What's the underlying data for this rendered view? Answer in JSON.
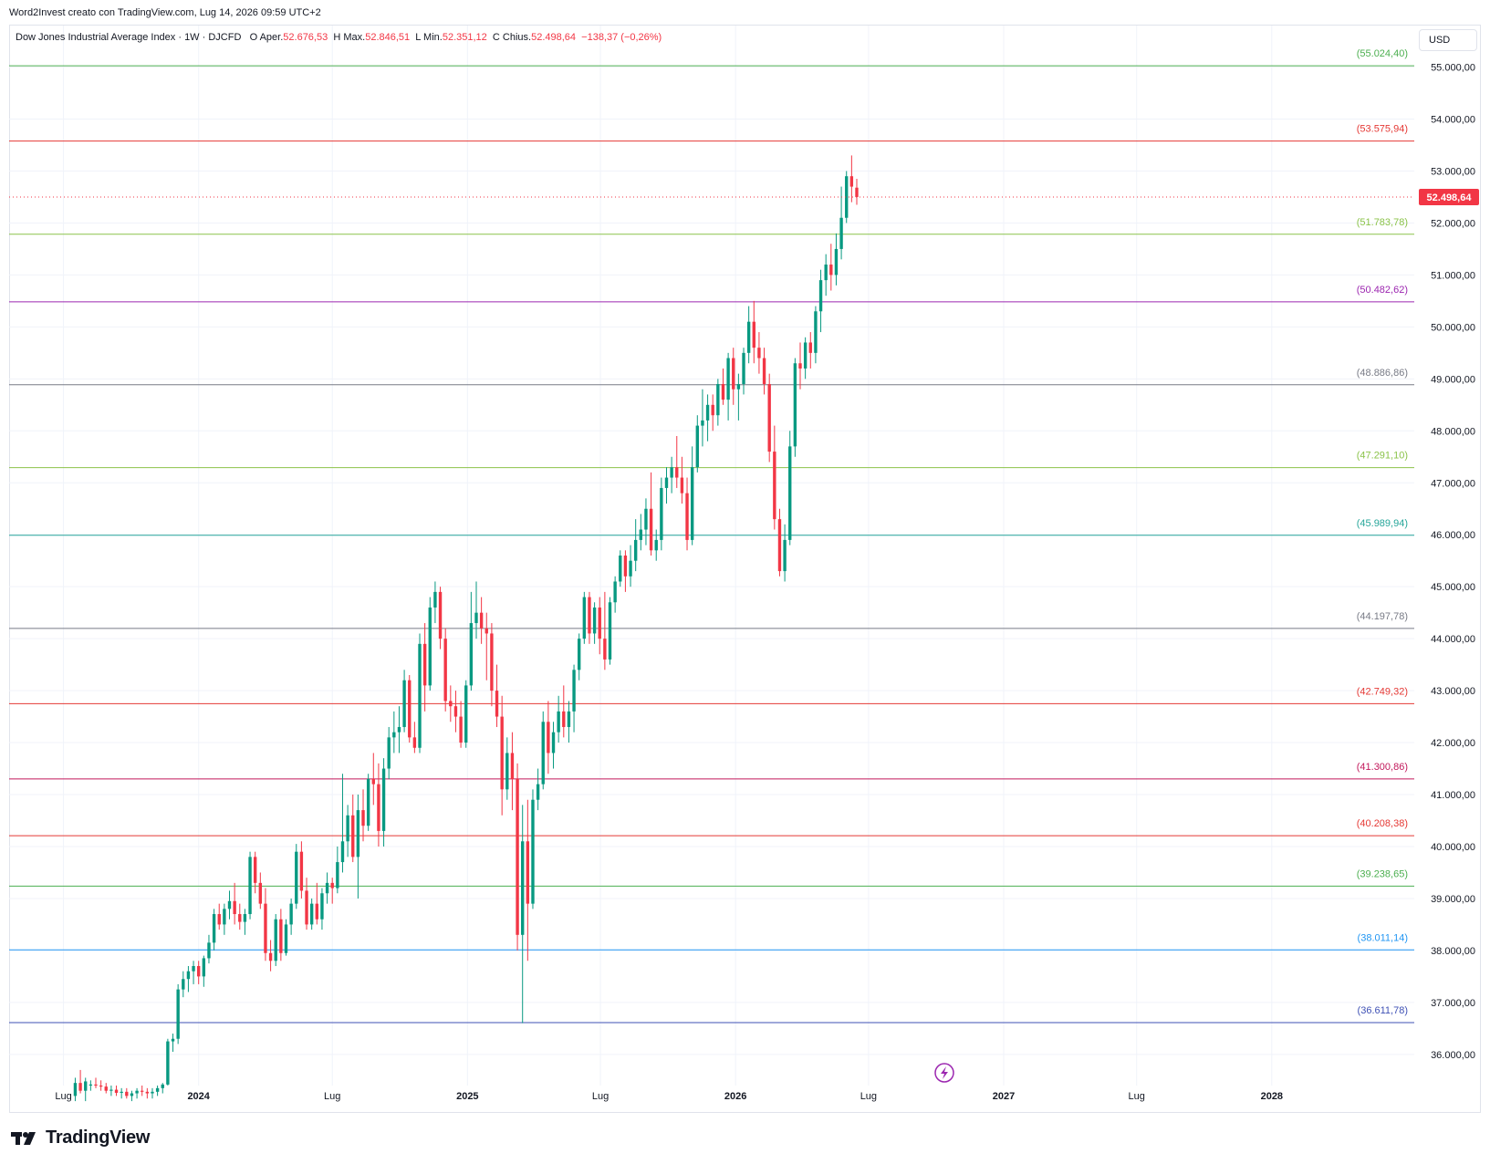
{
  "header": {
    "caption": "Word2Invest creato con TradingView.com, Lug 14, 2026 09:59 UTC+2"
  },
  "legend": {
    "symbol": "Dow Jones Industrial Average Index · 1W · DJCFD",
    "o_label": "O",
    "open_label": "Aper.",
    "open_value": "52.676,53",
    "h_label": "H",
    "high_label": "Max.",
    "high_value": "52.846,51",
    "l_label": "L",
    "low_label": "Min.",
    "low_value": "52.351,12",
    "c_label": "C",
    "close_label": "Chius.",
    "close_value": "52.498,64",
    "change": "−138,37 (−0,26%)"
  },
  "currency": "USD",
  "footer": {
    "brand": "TradingView"
  },
  "colors": {
    "up": "#089981",
    "down": "#f23645",
    "grid": "#f0f3fa",
    "text": "#131722"
  },
  "chart_data": {
    "type": "candlestick",
    "interval": "1W",
    "y_axis": {
      "side": "right",
      "ylim": [
        35400,
        55800
      ],
      "ticks": [
        36000,
        37000,
        38000,
        39000,
        40000,
        41000,
        42000,
        43000,
        44000,
        45000,
        46000,
        47000,
        48000,
        49000,
        50000,
        51000,
        52000,
        53000,
        54000,
        55000
      ],
      "tick_labels": [
        "36.000,00",
        "37.000,00",
        "38.000,00",
        "39.000,00",
        "40.000,00",
        "41.000,00",
        "42.000,00",
        "43.000,00",
        "44.000,00",
        "45.000,00",
        "46.000,00",
        "47.000,00",
        "48.000,00",
        "49.000,00",
        "50.000,00",
        "51.000,00",
        "52.000,00",
        "53.000,00",
        "54.000,00",
        "55.000,00"
      ]
    },
    "x_axis": {
      "start": "2023-04-18",
      "end": "2028-07-13",
      "ticks": [
        {
          "date": "2023-07-01",
          "label": "Lug"
        },
        {
          "date": "2024-01-01",
          "label": "2024"
        },
        {
          "date": "2024-07-01",
          "label": "Lug"
        },
        {
          "date": "2025-01-01",
          "label": "2025"
        },
        {
          "date": "2025-07-01",
          "label": "Lug"
        },
        {
          "date": "2026-01-01",
          "label": "2026"
        },
        {
          "date": "2026-07-01",
          "label": "Lug"
        },
        {
          "date": "2027-01-01",
          "label": "2027"
        },
        {
          "date": "2027-07-01",
          "label": "Lug"
        },
        {
          "date": "2028-01-01",
          "label": "2028"
        }
      ]
    },
    "last_price": {
      "value": 52498.64,
      "label": "52.498,64"
    },
    "levels": [
      {
        "value": 55024.4,
        "label": "(55.024,40)",
        "color": "#4caf50"
      },
      {
        "value": 53575.94,
        "label": "(53.575,94)",
        "color": "#e53935"
      },
      {
        "value": 51783.78,
        "label": "(51.783,78)",
        "color": "#8bc34a"
      },
      {
        "value": 50482.62,
        "label": "(50.482,62)",
        "color": "#9c27b0"
      },
      {
        "value": 48886.86,
        "label": "(48.886,86)",
        "color": "#787b86"
      },
      {
        "value": 47291.1,
        "label": "(47.291,10)",
        "color": "#8bc34a"
      },
      {
        "value": 45989.94,
        "label": "(45.989,94)",
        "color": "#26a69a"
      },
      {
        "value": 44197.78,
        "label": "(44.197,78)",
        "color": "#787b86"
      },
      {
        "value": 42749.32,
        "label": "(42.749,32)",
        "color": "#e53935"
      },
      {
        "value": 41300.86,
        "label": "(41.300,86)",
        "color": "#c2185b"
      },
      {
        "value": 40208.38,
        "label": "(40.208,38)",
        "color": "#e53935"
      },
      {
        "value": 39238.65,
        "label": "(39.238,65)",
        "color": "#4caf50"
      },
      {
        "value": 38011.14,
        "label": "(38.011,14)",
        "color": "#2196f3"
      },
      {
        "value": 36611.78,
        "label": "(36.611,78)",
        "color": "#3f51b5"
      }
    ],
    "candles_note": "weekly OHLC approximated from the image",
    "first_candle_date": "2023-07-17",
    "candles": [
      [
        35200,
        35550,
        35100,
        35450
      ],
      [
        35450,
        35700,
        35250,
        35300
      ],
      [
        35300,
        35550,
        35100,
        35480
      ],
      [
        35400,
        35500,
        35300,
        35420
      ],
      [
        35420,
        35550,
        35350,
        35400
      ],
      [
        35400,
        35500,
        35300,
        35380
      ],
      [
        35380,
        35450,
        35250,
        35300
      ],
      [
        35300,
        35400,
        35200,
        35320
      ],
      [
        35320,
        35400,
        35200,
        35260
      ],
      [
        35260,
        35350,
        35150,
        35280
      ],
      [
        35280,
        35350,
        35150,
        35200
      ],
      [
        35200,
        35300,
        35100,
        35250
      ],
      [
        35250,
        35350,
        35150,
        35300
      ],
      [
        35300,
        35400,
        35200,
        35280
      ],
      [
        35280,
        35350,
        35150,
        35250
      ],
      [
        35250,
        35350,
        35150,
        35280
      ],
      [
        35280,
        35400,
        35200,
        35350
      ],
      [
        35350,
        35450,
        35250,
        35420
      ],
      [
        35420,
        36300,
        35400,
        36250
      ],
      [
        36250,
        36400,
        36050,
        36300
      ],
      [
        36300,
        37350,
        36200,
        37250
      ],
      [
        37250,
        37600,
        37100,
        37450
      ],
      [
        37450,
        37700,
        37200,
        37600
      ],
      [
        37600,
        37800,
        37350,
        37700
      ],
      [
        37700,
        37800,
        37350,
        37500
      ],
      [
        37500,
        37900,
        37300,
        37850
      ],
      [
        37850,
        38300,
        37750,
        38150
      ],
      [
        38150,
        38800,
        38000,
        38700
      ],
      [
        38700,
        38900,
        38400,
        38500
      ],
      [
        38500,
        38900,
        38300,
        38800
      ],
      [
        38800,
        39150,
        38600,
        38950
      ],
      [
        38950,
        39300,
        38500,
        38700
      ],
      [
        38700,
        38900,
        38400,
        38550
      ],
      [
        38550,
        38800,
        38300,
        38700
      ],
      [
        38700,
        39900,
        38600,
        39800
      ],
      [
        39800,
        39900,
        39100,
        39300
      ],
      [
        39300,
        39500,
        38800,
        38900
      ],
      [
        38900,
        39200,
        37800,
        37950
      ],
      [
        37950,
        38200,
        37600,
        37800
      ],
      [
        37800,
        38700,
        37700,
        38600
      ],
      [
        38600,
        38800,
        37800,
        37950
      ],
      [
        37950,
        38600,
        37900,
        38500
      ],
      [
        38500,
        39000,
        38300,
        38900
      ],
      [
        38900,
        40050,
        38800,
        39900
      ],
      [
        39900,
        40100,
        39000,
        39150
      ],
      [
        39150,
        39400,
        38400,
        38500
      ],
      [
        38500,
        39000,
        38400,
        38900
      ],
      [
        38900,
        39300,
        38500,
        38600
      ],
      [
        38600,
        39200,
        38400,
        39100
      ],
      [
        39100,
        39500,
        38900,
        39300
      ],
      [
        39300,
        39400,
        38900,
        39200
      ],
      [
        39200,
        40000,
        39100,
        39700
      ],
      [
        39700,
        41400,
        39500,
        40100
      ],
      [
        40100,
        40800,
        39800,
        40600
      ],
      [
        40600,
        41000,
        39700,
        39800
      ],
      [
        39800,
        41000,
        39000,
        40700
      ],
      [
        40700,
        41100,
        40100,
        40400
      ],
      [
        40400,
        41400,
        40300,
        41300
      ],
      [
        41300,
        41800,
        40800,
        41200
      ],
      [
        41200,
        41600,
        40000,
        40300
      ],
      [
        40300,
        41700,
        40000,
        41500
      ],
      [
        41500,
        42300,
        41300,
        42100
      ],
      [
        42100,
        42600,
        41800,
        42200
      ],
      [
        42200,
        42700,
        41800,
        42300
      ],
      [
        42300,
        43400,
        42200,
        43200
      ],
      [
        43200,
        43300,
        42000,
        42100
      ],
      [
        42100,
        42400,
        41800,
        41900
      ],
      [
        41900,
        44100,
        41800,
        43900
      ],
      [
        43900,
        44300,
        42600,
        43100
      ],
      [
        43100,
        44800,
        43000,
        44600
      ],
      [
        44600,
        45100,
        44300,
        44900
      ],
      [
        44900,
        45000,
        43800,
        44000
      ],
      [
        44000,
        44200,
        42600,
        42800
      ],
      [
        42800,
        43100,
        42400,
        42700
      ],
      [
        42700,
        43000,
        42200,
        42500
      ],
      [
        42500,
        42800,
        41900,
        42000
      ],
      [
        42000,
        43200,
        41900,
        43100
      ],
      [
        43100,
        44900,
        43000,
        44300
      ],
      [
        44300,
        45100,
        44000,
        44500
      ],
      [
        44500,
        44800,
        43900,
        44200
      ],
      [
        44200,
        44500,
        43200,
        44100
      ],
      [
        44100,
        44300,
        42700,
        43000
      ],
      [
        43000,
        43500,
        42300,
        42500
      ],
      [
        42500,
        42900,
        40600,
        41100
      ],
      [
        41100,
        42100,
        40900,
        41800
      ],
      [
        41800,
        42200,
        40700,
        41300
      ],
      [
        41300,
        41600,
        38000,
        38300
      ],
      [
        38300,
        40800,
        36600,
        40100
      ],
      [
        40100,
        40900,
        37800,
        38900
      ],
      [
        38900,
        41100,
        38800,
        40900
      ],
      [
        40900,
        41500,
        40700,
        41200
      ],
      [
        41200,
        42600,
        41100,
        42400
      ],
      [
        42400,
        42800,
        41400,
        41800
      ],
      [
        41800,
        42400,
        41500,
        42200
      ],
      [
        42200,
        42900,
        42000,
        42600
      ],
      [
        42600,
        43100,
        42100,
        42300
      ],
      [
        42300,
        42800,
        42000,
        42600
      ],
      [
        42600,
        43500,
        42200,
        43400
      ],
      [
        43400,
        44100,
        43200,
        44000
      ],
      [
        44000,
        44900,
        43900,
        44800
      ],
      [
        44800,
        44900,
        43900,
        44100
      ],
      [
        44100,
        44700,
        43900,
        44600
      ],
      [
        44600,
        44800,
        43700,
        44000
      ],
      [
        44000,
        44900,
        43400,
        43600
      ],
      [
        43600,
        44800,
        43500,
        44700
      ],
      [
        44700,
        45200,
        44500,
        45100
      ],
      [
        45100,
        45700,
        45000,
        45600
      ],
      [
        45600,
        45700,
        44900,
        45200
      ],
      [
        45200,
        45800,
        45000,
        45500
      ],
      [
        45500,
        46300,
        45300,
        45900
      ],
      [
        45900,
        46400,
        45700,
        46100
      ],
      [
        46100,
        46700,
        45800,
        46500
      ],
      [
        46500,
        47200,
        45600,
        45700
      ],
      [
        45700,
        46100,
        45500,
        45900
      ],
      [
        45900,
        47100,
        45700,
        46900
      ],
      [
        46900,
        47300,
        46600,
        47100
      ],
      [
        47100,
        47500,
        46800,
        47300
      ],
      [
        47300,
        47900,
        46900,
        47100
      ],
      [
        47100,
        47500,
        46600,
        46800
      ],
      [
        46800,
        47100,
        45700,
        45900
      ],
      [
        45900,
        47700,
        45800,
        47300
      ],
      [
        47300,
        48300,
        47200,
        48100
      ],
      [
        48100,
        48800,
        47700,
        48200
      ],
      [
        48200,
        48700,
        47800,
        48500
      ],
      [
        48500,
        48700,
        48000,
        48300
      ],
      [
        48300,
        49000,
        48100,
        48900
      ],
      [
        48900,
        49200,
        48500,
        48600
      ],
      [
        48600,
        49500,
        48200,
        49400
      ],
      [
        49400,
        49600,
        48500,
        48800
      ],
      [
        48800,
        49100,
        48200,
        48900
      ],
      [
        48900,
        49600,
        48700,
        49500
      ],
      [
        49500,
        50400,
        49300,
        50100
      ],
      [
        50100,
        50500,
        49300,
        49600
      ],
      [
        49600,
        49900,
        49100,
        49400
      ],
      [
        49400,
        49600,
        48700,
        48900
      ],
      [
        48900,
        49100,
        47400,
        47600
      ],
      [
        47600,
        48100,
        46100,
        46300
      ],
      [
        46300,
        46500,
        45200,
        45300
      ],
      [
        45300,
        46200,
        45100,
        45900
      ],
      [
        45900,
        48000,
        45800,
        47700
      ],
      [
        47700,
        49400,
        47500,
        49300
      ],
      [
        49300,
        49700,
        48800,
        49200
      ],
      [
        49200,
        49800,
        49000,
        49700
      ],
      [
        49700,
        49900,
        49200,
        49500
      ],
      [
        49500,
        50400,
        49300,
        50300
      ],
      [
        50300,
        51100,
        49900,
        50900
      ],
      [
        50900,
        51400,
        50600,
        51200
      ],
      [
        51200,
        51600,
        50700,
        51000
      ],
      [
        51000,
        51800,
        50800,
        51500
      ],
      [
        51500,
        52700,
        51300,
        52100
      ],
      [
        52100,
        53000,
        52000,
        52900
      ],
      [
        52900,
        53300,
        52400,
        52700
      ],
      [
        52680,
        52850,
        52350,
        52500
      ]
    ]
  }
}
